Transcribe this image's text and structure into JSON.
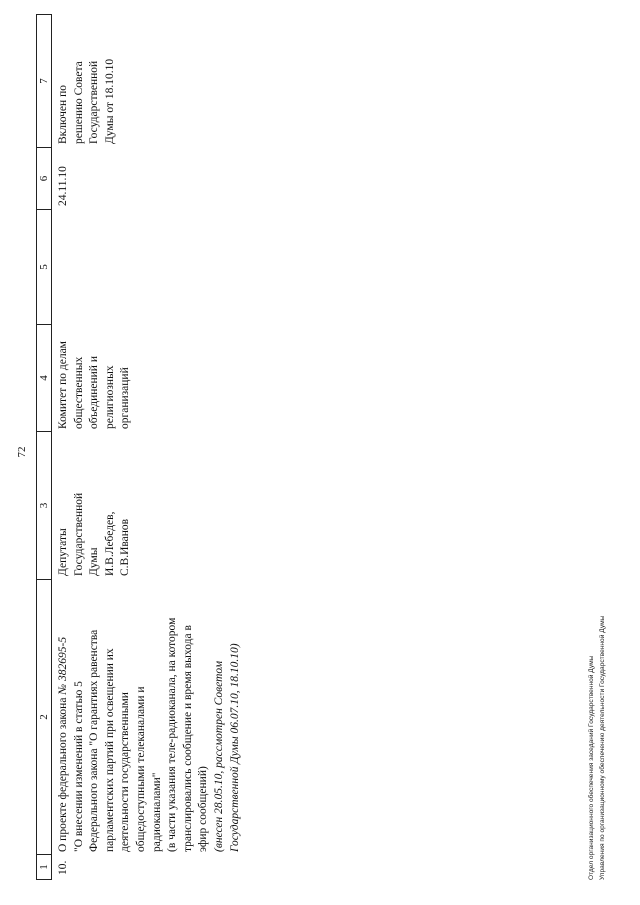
{
  "page_number": "72",
  "table": {
    "headers": [
      "1",
      "2",
      "3",
      "4",
      "5",
      "6",
      "7"
    ],
    "row": {
      "num": "10.",
      "title_lines": [
        {
          "text": "О проекте федерального закона ",
          "italic_part": "№ 382695-5"
        },
        {
          "text": "\"О внесении изменений в статью 5"
        },
        {
          "text": "Федерального закона \"О гарантиях равенства"
        },
        {
          "text": "парламентских партий при освещении их"
        },
        {
          "text": "деятельности государственными"
        },
        {
          "text": "общедоступными телеканалами и"
        },
        {
          "text": "радиоканалами\""
        },
        {
          "text": "(в части указания теле-радиоканала, на котором"
        },
        {
          "text": "транслировались сообщение и время выхода в"
        },
        {
          "text": "эфир сообщений)"
        }
      ],
      "note_lines": [
        "(внесен 28.05.10, рассмотрен Советом",
        "Государственной Думы 06.07.10, 18.10.10)"
      ],
      "initiators": [
        "Депутаты",
        "Государственной",
        "Думы",
        "И.В.Лебедев,",
        "С.В.Иванов"
      ],
      "committee": [
        "Комитет по делам",
        "общественных",
        "объединений и",
        "религиозных",
        "организаций"
      ],
      "col5": "",
      "date": "24.11.10",
      "remark": [
        "Включен по",
        "решению Совета",
        "Государственной",
        "Думы от 18.10.10"
      ]
    }
  },
  "footer": [
    "Отдел организационного обеспечения заседаний Государственной Думы",
    "Управления по организационному обеспечению деятельности Государственной Думы"
  ]
}
